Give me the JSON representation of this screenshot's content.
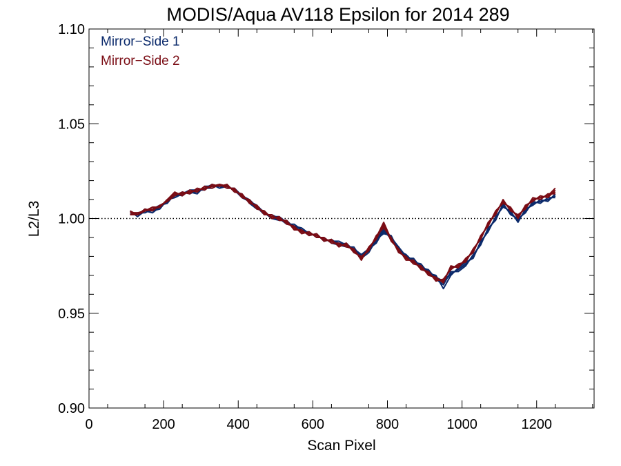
{
  "chart_data": {
    "type": "line",
    "title": "MODIS/Aqua AV118 Epsilon for 2014 289",
    "xlabel": "Scan Pixel",
    "ylabel": "L2/L3",
    "xlim": [
      0,
      1354
    ],
    "ylim": [
      0.9,
      1.1
    ],
    "x_ticks": [
      0,
      200,
      400,
      600,
      800,
      1000,
      1200
    ],
    "x_tick_labels": [
      "0",
      "200",
      "400",
      "600",
      "800",
      "1000",
      "1200"
    ],
    "y_ticks": [
      0.9,
      0.95,
      1.0,
      1.05,
      1.1
    ],
    "y_tick_labels": [
      "0.90",
      "0.95",
      "1.00",
      "1.05",
      "1.10"
    ],
    "reference_line": {
      "y": 1.0,
      "style": "dotted",
      "color": "#000000"
    },
    "legend": {
      "placement": "top-left"
    },
    "grid": false,
    "x": [
      110,
      130,
      150,
      170,
      190,
      210,
      230,
      250,
      270,
      290,
      310,
      330,
      350,
      370,
      390,
      410,
      430,
      450,
      470,
      490,
      510,
      530,
      550,
      570,
      590,
      610,
      630,
      650,
      670,
      690,
      710,
      730,
      750,
      770,
      790,
      810,
      830,
      850,
      870,
      890,
      910,
      930,
      950,
      970,
      990,
      1010,
      1030,
      1050,
      1070,
      1090,
      1110,
      1130,
      1150,
      1170,
      1190,
      1210,
      1230,
      1250
    ],
    "series": [
      {
        "name": "Mirror−Side 1",
        "color": "#0b2a6b",
        "lines": [
          [
            1.003,
            1.002,
            1.004,
            1.004,
            1.006,
            1.009,
            1.012,
            1.013,
            1.014,
            1.014,
            1.016,
            1.017,
            1.017,
            1.017,
            1.015,
            1.012,
            1.009,
            1.006,
            1.003,
            1.001,
            1.0,
            0.998,
            0.996,
            0.994,
            0.992,
            0.991,
            0.989,
            0.988,
            0.987,
            0.986,
            0.984,
            0.98,
            0.983,
            0.988,
            0.993,
            0.99,
            0.984,
            0.98,
            0.978,
            0.975,
            0.972,
            0.969,
            0.966,
            0.971,
            0.973,
            0.976,
            0.98,
            0.987,
            0.994,
            1.0,
            1.007,
            1.003,
            0.999,
            1.004,
            1.008,
            1.009,
            1.01,
            1.012
          ],
          [
            1.002,
            1.003,
            1.003,
            1.005,
            1.007,
            1.008,
            1.013,
            1.012,
            1.015,
            1.015,
            1.015,
            1.018,
            1.016,
            1.018,
            1.014,
            1.013,
            1.008,
            1.005,
            1.004,
            1.0,
            0.999,
            0.999,
            0.995,
            0.993,
            0.993,
            0.99,
            0.99,
            0.987,
            0.986,
            0.987,
            0.983,
            0.981,
            0.984,
            0.987,
            0.994,
            0.989,
            0.985,
            0.979,
            0.979,
            0.974,
            0.973,
            0.968,
            0.965,
            0.972,
            0.972,
            0.975,
            0.981,
            0.986,
            0.995,
            0.999,
            1.008,
            1.002,
            1.0,
            1.003,
            1.009,
            1.008,
            1.011,
            1.011
          ],
          [
            1.004,
            1.001,
            1.004,
            1.003,
            1.006,
            1.009,
            1.012,
            1.014,
            1.013,
            1.015,
            1.016,
            1.016,
            1.018,
            1.016,
            1.016,
            1.012,
            1.01,
            1.006,
            1.002,
            1.002,
            1.0,
            0.997,
            0.997,
            0.994,
            0.991,
            0.992,
            0.988,
            0.989,
            0.986,
            0.985,
            0.985,
            0.979,
            0.982,
            0.989,
            0.992,
            0.991,
            0.983,
            0.981,
            0.977,
            0.976,
            0.971,
            0.97,
            0.963,
            0.97,
            0.974,
            0.977,
            0.979,
            0.988,
            0.993,
            1.001,
            1.006,
            1.004,
            0.998,
            1.005,
            1.007,
            1.01,
            1.009,
            1.013
          ],
          [
            1.003,
            1.002,
            1.005,
            1.004,
            1.005,
            1.01,
            1.011,
            1.013,
            1.014,
            1.013,
            1.017,
            1.017,
            1.017,
            1.017,
            1.015,
            1.011,
            1.009,
            1.007,
            1.003,
            1.001,
            1.001,
            0.998,
            0.996,
            0.995,
            0.992,
            0.991,
            0.989,
            0.988,
            0.988,
            0.986,
            0.984,
            0.98,
            0.983,
            0.988,
            0.995,
            0.99,
            0.984,
            0.98,
            0.978,
            0.975,
            0.972,
            0.969,
            0.967,
            0.971,
            0.973,
            0.976,
            0.98,
            0.987,
            0.994,
            1.0,
            1.007,
            1.003,
            0.999,
            1.004,
            1.008,
            1.009,
            1.01,
            1.012
          ],
          [
            1.002,
            1.002,
            1.004,
            1.005,
            1.006,
            1.009,
            1.012,
            1.013,
            1.015,
            1.014,
            1.016,
            1.018,
            1.016,
            1.017,
            1.015,
            1.012,
            1.009,
            1.006,
            1.003,
            1.0,
            1.0,
            0.998,
            0.996,
            0.994,
            0.992,
            0.991,
            0.989,
            0.988,
            0.987,
            0.986,
            0.984,
            0.981,
            0.983,
            0.988,
            0.993,
            0.99,
            0.985,
            0.98,
            0.978,
            0.975,
            0.972,
            0.969,
            0.966,
            0.971,
            0.973,
            0.976,
            0.98,
            0.987,
            0.994,
            1.0,
            1.007,
            1.003,
            0.999,
            1.004,
            1.008,
            1.009,
            1.01,
            1.012
          ]
        ]
      },
      {
        "name": "Mirror−Side 2",
        "color": "#7a0c14",
        "lines": [
          [
            1.003,
            1.003,
            1.004,
            1.005,
            1.006,
            1.01,
            1.013,
            1.013,
            1.014,
            1.015,
            1.016,
            1.017,
            1.018,
            1.017,
            1.015,
            1.012,
            1.009,
            1.006,
            1.003,
            1.001,
            1.0,
            0.998,
            0.995,
            0.993,
            0.992,
            0.991,
            0.989,
            0.988,
            0.986,
            0.986,
            0.983,
            0.979,
            0.984,
            0.99,
            0.996,
            0.989,
            0.983,
            0.979,
            0.977,
            0.974,
            0.971,
            0.968,
            0.967,
            0.974,
            0.975,
            0.978,
            0.983,
            0.99,
            0.997,
            1.003,
            1.009,
            1.005,
            1.001,
            1.006,
            1.01,
            1.011,
            1.012,
            1.014
          ],
          [
            1.002,
            1.002,
            1.005,
            1.004,
            1.007,
            1.009,
            1.012,
            1.014,
            1.013,
            1.016,
            1.015,
            1.018,
            1.017,
            1.018,
            1.014,
            1.013,
            1.008,
            1.007,
            1.002,
            1.002,
            0.999,
            0.999,
            0.994,
            0.994,
            0.991,
            0.992,
            0.988,
            0.989,
            0.985,
            0.987,
            0.982,
            0.98,
            0.983,
            0.991,
            0.995,
            0.99,
            0.982,
            0.98,
            0.976,
            0.975,
            0.97,
            0.969,
            0.966,
            0.975,
            0.974,
            0.979,
            0.982,
            0.991,
            0.996,
            1.004,
            1.008,
            1.006,
            1.0,
            1.007,
            1.009,
            1.012,
            1.011,
            1.015
          ],
          [
            1.004,
            1.002,
            1.004,
            1.005,
            1.006,
            1.01,
            1.014,
            1.012,
            1.015,
            1.014,
            1.017,
            1.016,
            1.018,
            1.016,
            1.016,
            1.011,
            1.01,
            1.005,
            1.004,
            1.0,
            1.001,
            0.997,
            0.996,
            0.992,
            0.993,
            0.99,
            0.99,
            0.987,
            0.987,
            0.985,
            0.984,
            0.978,
            0.985,
            0.989,
            0.997,
            0.988,
            0.984,
            0.978,
            0.978,
            0.973,
            0.972,
            0.967,
            0.968,
            0.973,
            0.976,
            0.977,
            0.984,
            0.989,
            0.998,
            1.002,
            1.01,
            1.004,
            1.002,
            1.005,
            1.011,
            1.01,
            1.013,
            1.013
          ],
          [
            1.003,
            1.003,
            1.004,
            1.006,
            1.006,
            1.01,
            1.013,
            1.013,
            1.014,
            1.015,
            1.016,
            1.017,
            1.018,
            1.017,
            1.015,
            1.012,
            1.009,
            1.006,
            1.003,
            1.001,
            1.0,
            0.998,
            0.995,
            0.993,
            0.992,
            0.991,
            0.989,
            0.988,
            0.986,
            0.986,
            0.983,
            0.979,
            0.984,
            0.99,
            0.998,
            0.989,
            0.983,
            0.979,
            0.977,
            0.974,
            0.971,
            0.968,
            0.967,
            0.974,
            0.975,
            0.978,
            0.983,
            0.99,
            0.997,
            1.003,
            1.009,
            1.005,
            1.001,
            1.006,
            1.01,
            1.011,
            1.012,
            1.016
          ],
          [
            1.003,
            1.002,
            1.004,
            1.005,
            1.006,
            1.01,
            1.013,
            1.013,
            1.014,
            1.015,
            1.016,
            1.017,
            1.018,
            1.017,
            1.015,
            1.012,
            1.009,
            1.006,
            1.003,
            1.001,
            1.0,
            0.998,
            0.995,
            0.993,
            0.992,
            0.991,
            0.989,
            0.988,
            0.986,
            0.986,
            0.983,
            0.979,
            0.984,
            0.99,
            0.996,
            0.989,
            0.983,
            0.979,
            0.977,
            0.974,
            0.971,
            0.968,
            0.967,
            0.974,
            0.975,
            0.978,
            0.983,
            0.99,
            0.997,
            1.003,
            1.009,
            1.005,
            1.001,
            1.006,
            1.01,
            1.011,
            1.012,
            1.014
          ]
        ]
      }
    ]
  }
}
